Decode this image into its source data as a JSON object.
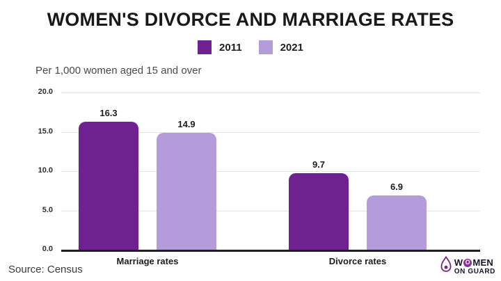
{
  "chart_data": {
    "type": "bar",
    "title": "WOMEN'S DIVORCE AND MARRIAGE RATES",
    "subtitle": "Per 1,000 women aged 15 and over",
    "categories": [
      "Marriage rates",
      "Divorce rates"
    ],
    "series": [
      {
        "name": "2011",
        "color": "#6f2191",
        "values": [
          16.3,
          9.7
        ]
      },
      {
        "name": "2021",
        "color": "#b49cda",
        "values": [
          14.9,
          6.9
        ]
      }
    ],
    "ylim": [
      0,
      20
    ],
    "yticks": [
      "20.0",
      "15.0",
      "10.0",
      "5.0",
      "0.0"
    ],
    "grid": true,
    "legend_position": "top-center",
    "source": "Source: Census"
  },
  "logo": {
    "line1_pre": "W",
    "line1_o": "O",
    "line1_post": "MEN",
    "line2": "ON GUARD",
    "accent_color": "#7b2483"
  }
}
